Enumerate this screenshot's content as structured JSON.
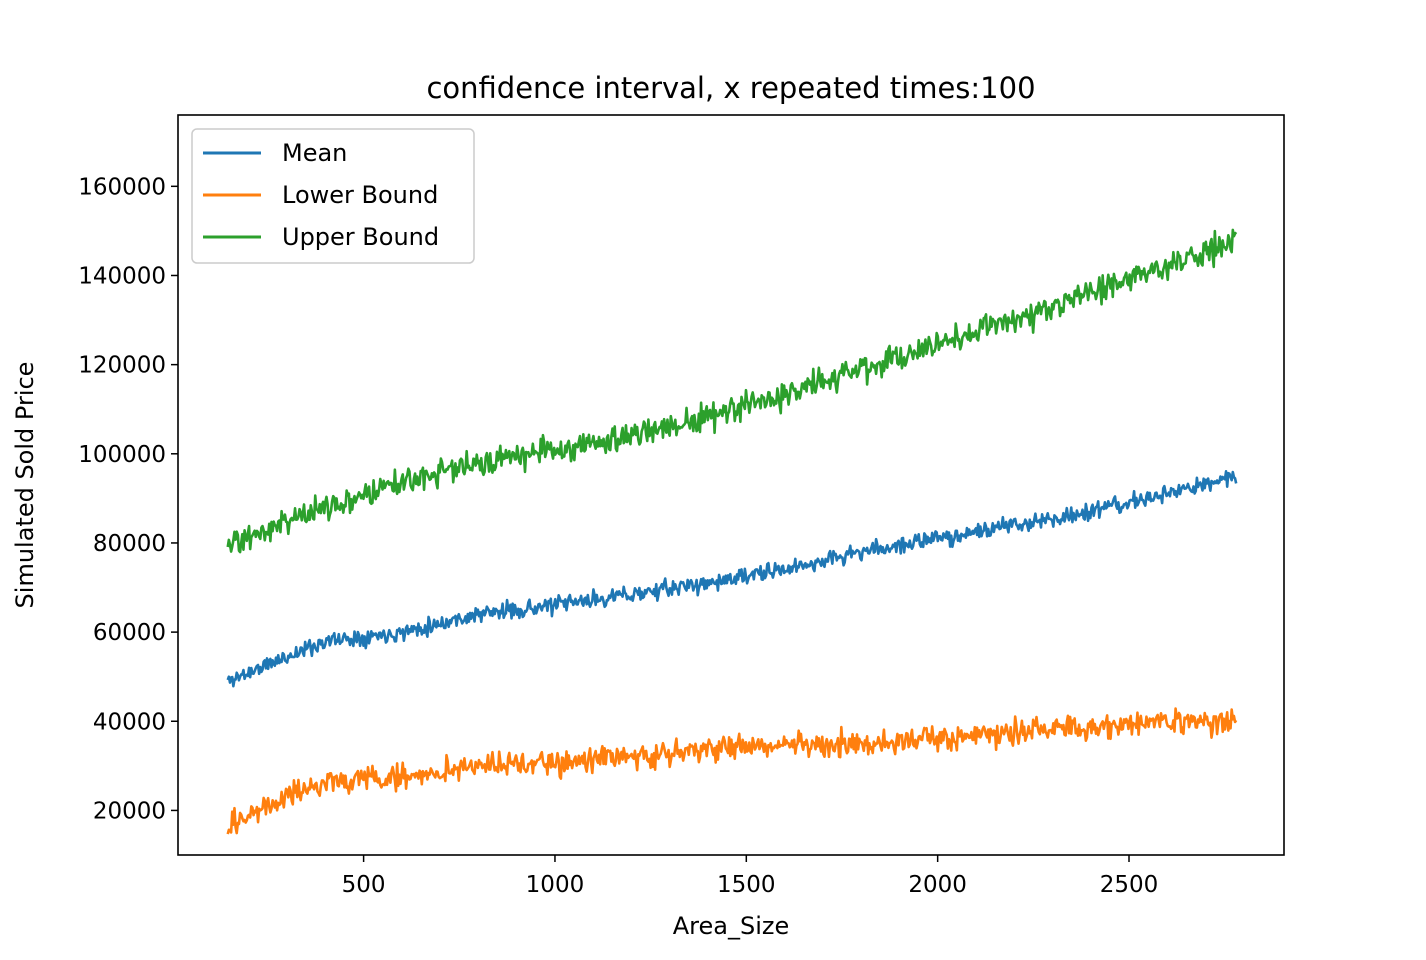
{
  "chart_data": {
    "type": "line",
    "title": "confidence interval, x repeated times:100",
    "xlabel": "Area_Size",
    "ylabel": "Simulated Sold Price",
    "xlim": [
      15,
      2905
    ],
    "ylim": [
      10000,
      176000
    ],
    "xticks": [
      500,
      1000,
      1500,
      2000,
      2500
    ],
    "xtick_labels": [
      "500",
      "1000",
      "1500",
      "2000",
      "2500"
    ],
    "yticks": [
      20000,
      40000,
      60000,
      80000,
      100000,
      120000,
      140000,
      160000
    ],
    "ytick_labels": [
      "20000",
      "40000",
      "60000",
      "80000",
      "100000",
      "120000",
      "140000",
      "160000"
    ],
    "grid": false,
    "legend_position": "top-left",
    "x_range": [
      145,
      2780
    ],
    "series": [
      {
        "name": "Mean",
        "color": "#1f77b4",
        "x": [
          145,
          400,
          600,
          800,
          1000,
          1200,
          1400,
          1600,
          1800,
          2000,
          2200,
          2400,
          2600,
          2780
        ],
        "values": [
          49000,
          58000,
          60000,
          64000,
          66000,
          68500,
          71000,
          74000,
          78000,
          81000,
          84000,
          87000,
          91000,
          95000
        ],
        "noise_amplitude": 2800
      },
      {
        "name": "Lower Bound",
        "color": "#ff7f0e",
        "x": [
          145,
          400,
          600,
          800,
          1000,
          1200,
          1400,
          1600,
          1800,
          2000,
          2200,
          2400,
          2600,
          2780
        ],
        "values": [
          17000,
          26500,
          27500,
          30000,
          30500,
          32000,
          34000,
          34500,
          35000,
          36000,
          37500,
          38500,
          40000,
          40000
        ],
        "noise_amplitude": 4200
      },
      {
        "name": "Upper Bound",
        "color": "#2ca02c",
        "x": [
          145,
          400,
          600,
          800,
          1000,
          1200,
          1400,
          1600,
          1800,
          2000,
          2200,
          2400,
          2600,
          2780
        ],
        "values": [
          80000,
          88000,
          94000,
          98000,
          101000,
          104000,
          108000,
          113000,
          119000,
          125000,
          130000,
          136000,
          142000,
          148000
        ],
        "noise_amplitude": 4500
      }
    ]
  }
}
